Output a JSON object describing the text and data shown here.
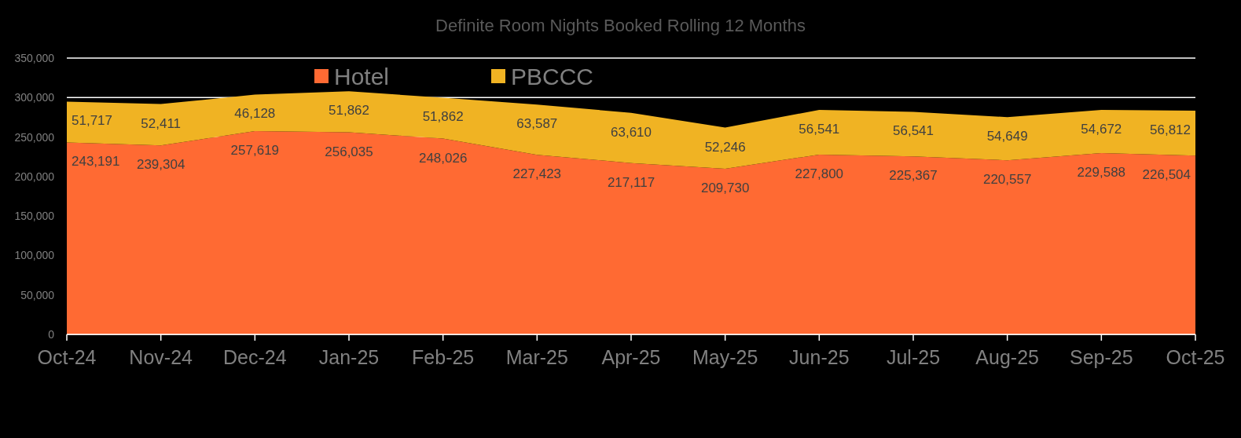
{
  "chart_data": {
    "type": "area",
    "title": "Definite Room Nights Booked  Rolling  12 Months",
    "stacked": true,
    "categories": [
      "Oct-24",
      "Nov-24",
      "Dec-24",
      "Jan-25",
      "Feb-25",
      "Mar-25",
      "Apr-25",
      "May-25",
      "Jun-25",
      "Jul-25",
      "Aug-25",
      "Sep-25",
      "Oct-25"
    ],
    "series": [
      {
        "name": "Hotel",
        "color": "#ff6a33",
        "values": [
          243191,
          239304,
          257619,
          256035,
          248026,
          227423,
          217117,
          209730,
          227800,
          225367,
          220557,
          229588,
          226504
        ],
        "value_labels": [
          "243,191",
          "239,304",
          "257,619",
          "256,035",
          "248,026",
          "227,423",
          "217,117",
          "209,730",
          "227,800",
          "225,367",
          "220,557",
          "229,588",
          "226,504"
        ]
      },
      {
        "name": "PBCCC",
        "color": "#f0b323",
        "values": [
          51717,
          52411,
          46128,
          51862,
          51862,
          63587,
          63610,
          52246,
          56541,
          56541,
          54649,
          54672,
          56812
        ],
        "value_labels": [
          "51,717",
          "52,411",
          "46,128",
          "51,862",
          "51,862",
          "63,587",
          "63,610",
          "52,246",
          "56,541",
          "56,541",
          "54,649",
          "54,672",
          "56,812"
        ]
      }
    ],
    "ylim": [
      0,
      350000
    ],
    "yticks": [
      {
        "value": 0,
        "label": "0"
      },
      {
        "value": 50000,
        "label": "50,000"
      },
      {
        "value": 100000,
        "label": "100,000"
      },
      {
        "value": 150000,
        "label": "150,000"
      },
      {
        "value": 200000,
        "label": "200,000"
      },
      {
        "value": 250000,
        "label": "250,000"
      },
      {
        "value": 300000,
        "label": "300,000"
      },
      {
        "value": 350000,
        "label": "350,000"
      }
    ],
    "grid": "y",
    "legend": "top"
  }
}
